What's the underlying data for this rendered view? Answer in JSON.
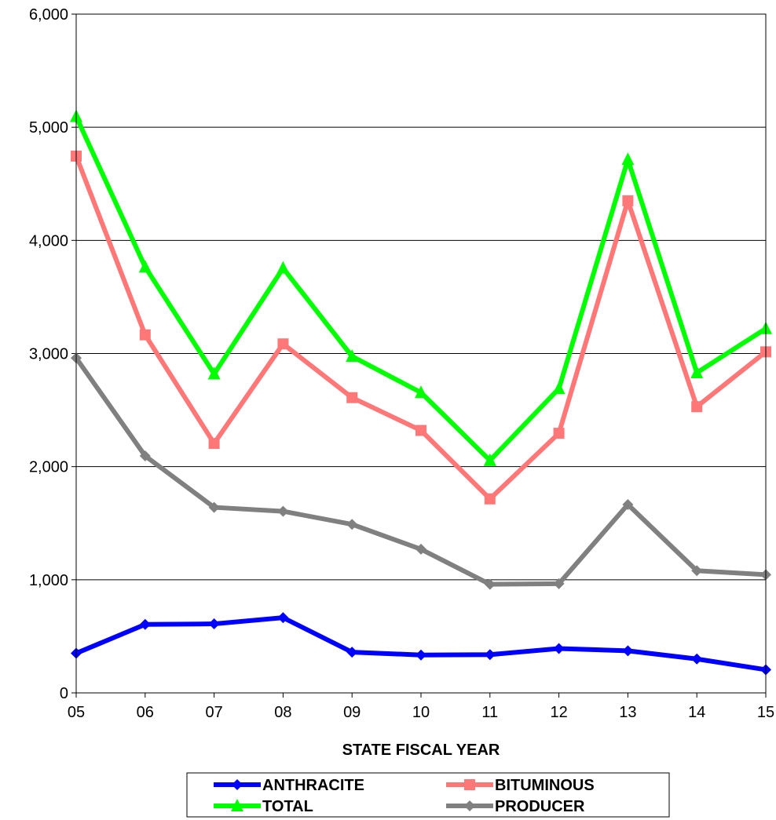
{
  "chart_data": {
    "type": "line",
    "categories": [
      "05",
      "06",
      "07",
      "08",
      "09",
      "10",
      "11",
      "12",
      "13",
      "14",
      "15"
    ],
    "series": [
      {
        "name": "ANTHRACITE",
        "color": "#0000ff",
        "marker": "diamond",
        "values": [
          350,
          605,
          610,
          665,
          360,
          335,
          338,
          392,
          372,
          300,
          205
        ]
      },
      {
        "name": "BITUMINOUS",
        "color": "#ff7777",
        "marker": "square",
        "values": [
          4745,
          3165,
          2205,
          3085,
          2610,
          2320,
          1715,
          2295,
          4350,
          2530,
          3015
        ]
      },
      {
        "name": "TOTAL",
        "color": "#00ff00",
        "marker": "triangle",
        "values": [
          5095,
          3765,
          2820,
          3755,
          2975,
          2655,
          2055,
          2690,
          4715,
          2830,
          3220
        ]
      },
      {
        "name": "PRODUCER",
        "color": "#808080",
        "marker": "diamond",
        "values": [
          2960,
          2095,
          1640,
          1605,
          1490,
          1270,
          960,
          965,
          1665,
          1080,
          1045
        ]
      }
    ],
    "xlabel": "STATE FISCAL YEAR",
    "ylabel": "",
    "ylim": [
      0,
      6000
    ],
    "yticks": [
      0,
      1000,
      2000,
      3000,
      4000,
      5000,
      6000
    ],
    "ytick_labels": [
      "0",
      "1,000",
      "2,000",
      "3,000",
      "4,000",
      "5,000",
      "6,000"
    ],
    "grid": "horizontal",
    "legend_position": "bottom"
  }
}
